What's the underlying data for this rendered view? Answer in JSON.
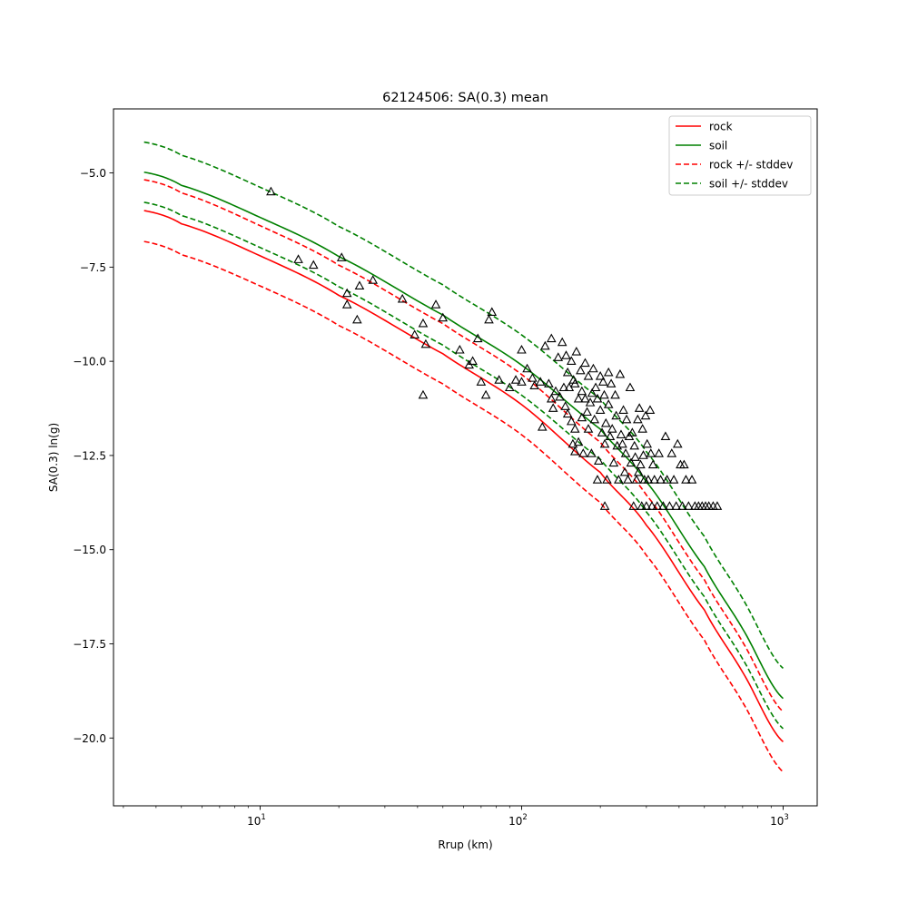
{
  "chart_data": {
    "type": "scatter",
    "title": "62124506: SA(0.3) mean",
    "xlabel": "Rrup (km)",
    "ylabel": "SA(0.3) ln(g)",
    "xscale": "log",
    "xlim": [
      2.75,
      1350
    ],
    "ylim": [
      -21.8,
      -3.3
    ],
    "grid": false,
    "legend_position": "top-right",
    "x_ticks": [
      {
        "value": 10,
        "base": "10",
        "exp": "1"
      },
      {
        "value": 100,
        "base": "10",
        "exp": "2"
      },
      {
        "value": 1000,
        "base": "10",
        "exp": "3"
      }
    ],
    "y_ticks": [
      {
        "value": -5.0,
        "label": "−5.0"
      },
      {
        "value": -7.5,
        "label": "−7.5"
      },
      {
        "value": -10.0,
        "label": "−10.0"
      },
      {
        "value": -12.5,
        "label": "−12.5"
      },
      {
        "value": -15.0,
        "label": "−15.0"
      },
      {
        "value": -17.5,
        "label": "−17.5"
      },
      {
        "value": -20.0,
        "label": "−20.0"
      }
    ],
    "series": [
      {
        "name": "rock",
        "kind": "line",
        "style": "solid",
        "color": "#ff0000",
        "x": [
          3.6,
          5,
          10,
          20,
          50,
          100,
          200,
          300,
          500,
          700,
          1000
        ],
        "y": [
          -6.0,
          -6.35,
          -7.2,
          -8.25,
          -9.8,
          -11.15,
          -12.95,
          -14.35,
          -16.6,
          -18.25,
          -20.1
        ]
      },
      {
        "name": "soil",
        "kind": "line",
        "style": "solid",
        "color": "#008000",
        "x": [
          3.6,
          5,
          10,
          20,
          50,
          100,
          200,
          300,
          500,
          700,
          1000
        ],
        "y": [
          -4.98,
          -5.33,
          -6.18,
          -7.22,
          -8.77,
          -10.1,
          -11.8,
          -13.2,
          -15.45,
          -17.1,
          -18.95
        ]
      },
      {
        "name": "rock +/- stddev",
        "kind": "line",
        "style": "dashed",
        "color": "#ff0000",
        "x": [
          3.6,
          5,
          10,
          20,
          50,
          100,
          200,
          300,
          500,
          700,
          1000
        ],
        "y": [
          -5.18,
          -5.53,
          -6.4,
          -7.45,
          -9.0,
          -10.35,
          -12.15,
          -13.55,
          -15.8,
          -17.45,
          -19.3
        ]
      },
      {
        "name": "",
        "kind": "line",
        "style": "dashed",
        "color": "#ff0000",
        "x": [
          3.6,
          5,
          10,
          20,
          50,
          100,
          200,
          300,
          500,
          700,
          1000
        ],
        "y": [
          -6.82,
          -7.17,
          -8.0,
          -9.05,
          -10.6,
          -11.95,
          -13.75,
          -15.15,
          -17.4,
          -19.05,
          -20.9
        ]
      },
      {
        "name": "soil +/- stddev",
        "kind": "line",
        "style": "dashed",
        "color": "#008000",
        "x": [
          3.6,
          5,
          10,
          20,
          50,
          100,
          200,
          300,
          500,
          700,
          1000
        ],
        "y": [
          -4.18,
          -4.53,
          -5.38,
          -6.42,
          -7.97,
          -9.3,
          -11.0,
          -12.4,
          -14.65,
          -16.3,
          -18.15
        ]
      },
      {
        "name": "",
        "kind": "line",
        "style": "dashed",
        "color": "#008000",
        "x": [
          3.6,
          5,
          10,
          20,
          50,
          100,
          200,
          300,
          500,
          700,
          1000
        ],
        "y": [
          -5.78,
          -6.13,
          -6.98,
          -8.02,
          -9.57,
          -10.9,
          -12.6,
          -14.0,
          -16.25,
          -17.9,
          -19.75
        ]
      }
    ],
    "observations": {
      "marker": "triangle",
      "points": [
        [
          11,
          -5.5
        ],
        [
          14,
          -7.3
        ],
        [
          16,
          -7.45
        ],
        [
          20.5,
          -7.25
        ],
        [
          21.5,
          -8.2
        ],
        [
          21.5,
          -8.5
        ],
        [
          23.5,
          -8.9
        ],
        [
          24,
          -8.0
        ],
        [
          27,
          -7.85
        ],
        [
          35,
          -8.35
        ],
        [
          39,
          -9.3
        ],
        [
          42,
          -9.0
        ],
        [
          42,
          -10.9
        ],
        [
          43,
          -9.55
        ],
        [
          47,
          -8.5
        ],
        [
          50,
          -8.85
        ],
        [
          58,
          -9.7
        ],
        [
          63,
          -10.1
        ],
        [
          65,
          -10.0
        ],
        [
          68,
          -9.4
        ],
        [
          70,
          -10.55
        ],
        [
          73,
          -10.9
        ],
        [
          75,
          -8.9
        ],
        [
          77,
          -8.7
        ],
        [
          82,
          -10.5
        ],
        [
          90,
          -10.7
        ],
        [
          95,
          -10.5
        ],
        [
          100,
          -10.55
        ],
        [
          100,
          -9.7
        ],
        [
          105,
          -10.2
        ],
        [
          110,
          -10.45
        ],
        [
          112,
          -10.65
        ],
        [
          118,
          -10.55
        ],
        [
          120,
          -11.75
        ],
        [
          123,
          -9.6
        ],
        [
          127,
          -10.6
        ],
        [
          130,
          -9.4
        ],
        [
          130,
          -11.0
        ],
        [
          132,
          -11.25
        ],
        [
          135,
          -10.8
        ],
        [
          138,
          -9.9
        ],
        [
          140,
          -10.95
        ],
        [
          143,
          -9.5
        ],
        [
          145,
          -10.7
        ],
        [
          147,
          -11.2
        ],
        [
          148,
          -9.85
        ],
        [
          150,
          -10.3
        ],
        [
          150,
          -11.4
        ],
        [
          152,
          -10.7
        ],
        [
          155,
          -10.0
        ],
        [
          155,
          -11.6
        ],
        [
          157,
          -12.2
        ],
        [
          158,
          -10.5
        ],
        [
          160,
          -10.6
        ],
        [
          160,
          -11.8
        ],
        [
          160,
          -12.4
        ],
        [
          162,
          -9.75
        ],
        [
          165,
          -11.0
        ],
        [
          165,
          -12.15
        ],
        [
          168,
          -10.25
        ],
        [
          170,
          -10.8
        ],
        [
          170,
          -11.5
        ],
        [
          172,
          -12.45
        ],
        [
          175,
          -10.05
        ],
        [
          175,
          -11.0
        ],
        [
          178,
          -11.35
        ],
        [
          180,
          -10.4
        ],
        [
          180,
          -11.8
        ],
        [
          183,
          -11.1
        ],
        [
          185,
          -12.45
        ],
        [
          186,
          -10.85
        ],
        [
          188,
          -10.2
        ],
        [
          190,
          -11.55
        ],
        [
          192,
          -10.7
        ],
        [
          195,
          -11.0
        ],
        [
          195,
          -13.15
        ],
        [
          197,
          -12.65
        ],
        [
          200,
          -10.4
        ],
        [
          200,
          -11.3
        ],
        [
          203,
          -11.9
        ],
        [
          205,
          -10.55
        ],
        [
          207,
          -10.9
        ],
        [
          208,
          -12.2
        ],
        [
          208,
          -13.85
        ],
        [
          210,
          -11.65
        ],
        [
          212,
          -13.15
        ],
        [
          215,
          -10.3
        ],
        [
          215,
          -11.15
        ],
        [
          218,
          -12.0
        ],
        [
          220,
          -10.6
        ],
        [
          222,
          -11.8
        ],
        [
          225,
          -12.7
        ],
        [
          228,
          -10.9
        ],
        [
          230,
          -11.45
        ],
        [
          232,
          -12.25
        ],
        [
          235,
          -13.15
        ],
        [
          238,
          -10.35
        ],
        [
          240,
          -11.95
        ],
        [
          243,
          -12.2
        ],
        [
          245,
          -11.3
        ],
        [
          248,
          -12.95
        ],
        [
          250,
          -12.45
        ],
        [
          252,
          -11.55
        ],
        [
          255,
          -13.15
        ],
        [
          258,
          -12.0
        ],
        [
          260,
          -10.7
        ],
        [
          262,
          -12.7
        ],
        [
          265,
          -11.9
        ],
        [
          268,
          -13.85
        ],
        [
          270,
          -12.25
        ],
        [
          272,
          -12.55
        ],
        [
          275,
          -13.15
        ],
        [
          278,
          -11.55
        ],
        [
          280,
          -12.95
        ],
        [
          282,
          -11.25
        ],
        [
          285,
          -12.75
        ],
        [
          288,
          -13.85
        ],
        [
          290,
          -11.8
        ],
        [
          292,
          -12.5
        ],
        [
          295,
          -13.15
        ],
        [
          298,
          -11.45
        ],
        [
          300,
          -13.85
        ],
        [
          302,
          -12.2
        ],
        [
          305,
          -13.15
        ],
        [
          310,
          -11.3
        ],
        [
          312,
          -12.45
        ],
        [
          315,
          -13.85
        ],
        [
          318,
          -12.75
        ],
        [
          322,
          -13.15
        ],
        [
          330,
          -13.85
        ],
        [
          335,
          -12.45
        ],
        [
          340,
          -13.15
        ],
        [
          348,
          -13.85
        ],
        [
          355,
          -12.0
        ],
        [
          360,
          -13.15
        ],
        [
          368,
          -13.85
        ],
        [
          375,
          -12.45
        ],
        [
          382,
          -13.15
        ],
        [
          390,
          -13.85
        ],
        [
          395,
          -12.2
        ],
        [
          405,
          -12.75
        ],
        [
          412,
          -13.85
        ],
        [
          418,
          -12.75
        ],
        [
          425,
          -13.15
        ],
        [
          435,
          -13.85
        ],
        [
          448,
          -13.15
        ],
        [
          460,
          -13.85
        ],
        [
          475,
          -13.85
        ],
        [
          490,
          -13.85
        ],
        [
          505,
          -13.85
        ],
        [
          520,
          -13.85
        ],
        [
          540,
          -13.85
        ],
        [
          560,
          -13.85
        ]
      ]
    }
  }
}
